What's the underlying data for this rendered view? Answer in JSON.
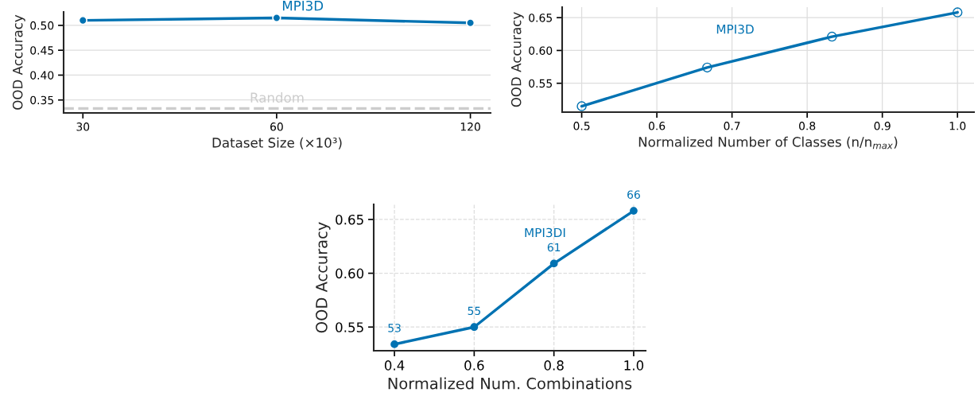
{
  "chart_data": [
    {
      "type": "line",
      "xlabel": "Dataset Size (×10³)",
      "ylabel": "OOD Accuracy",
      "x": [
        30,
        60,
        120
      ],
      "series": [
        {
          "color": "#0072b2",
          "values": [
            0.51,
            0.515,
            0.505
          ]
        }
      ],
      "log": "x",
      "xlim": [
        28,
        129
      ],
      "xticks": [
        30,
        60,
        120
      ],
      "ylim": [
        0.324,
        0.527
      ],
      "yticks": [
        0.35,
        {
          "value": 0.4,
          "label": "0.40"
        },
        0.45,
        {
          "value": 0.5,
          "label": "0.50"
        }
      ],
      "grid": "y",
      "marker": "circle",
      "line_style": "solid",
      "ref_lines": [
        {
          "axis": "y",
          "value": 0.333,
          "label": "Random",
          "color": "#cccccc",
          "line_style": "dashed"
        }
      ],
      "annotations": [
        "MPI3D"
      ]
    },
    {
      "type": "line",
      "xlabel": "Normalized Number of Classes (n/n$_{max}$)",
      "ylabel": "OOD Accuracy",
      "x": [
        0.5,
        0.667,
        0.833,
        1.0
      ],
      "series": [
        {
          "color": "#0072b2",
          "values": [
            0.515,
            0.574,
            0.621,
            0.658
          ]
        }
      ],
      "xlim": [
        0.474,
        1.022
      ],
      "xticks": [
        0.5,
        0.6,
        0.7,
        0.8,
        0.9,
        {
          "value": 1.0,
          "label": "1.0"
        }
      ],
      "ylim": [
        0.506,
        0.666
      ],
      "yticks": [
        0.55,
        {
          "value": 0.6,
          "label": "0.60"
        },
        0.65
      ],
      "grid": true,
      "marker": "circle",
      "line_style": "solid",
      "annotations": [
        "MPI3D"
      ]
    },
    {
      "type": "line",
      "xlabel": "Normalized Num. Combinations",
      "ylabel": "OOD Accuracy",
      "x": [
        0.4,
        0.6,
        0.8,
        1.0
      ],
      "series": [
        {
          "color": "#0072b2",
          "values": [
            0.534,
            0.55,
            0.609,
            0.658
          ]
        }
      ],
      "xlim": [
        0.348,
        1.03
      ],
      "xticks": [
        0.4,
        0.6,
        0.8,
        {
          "value": 1.0,
          "label": "1.0"
        }
      ],
      "ylim": [
        0.528,
        0.664
      ],
      "yticks": [
        0.55,
        {
          "value": 0.6,
          "label": "0.60"
        },
        0.65
      ],
      "grid": true,
      "marker": "circle",
      "line_style": "solid",
      "annotations": [
        "MPI3DI",
        {
          "text": "53",
          "x": 0.4,
          "y": 0.534
        },
        {
          "text": "55",
          "x": 0.6,
          "y": 0.55
        },
        {
          "text": "61",
          "x": 0.8,
          "y": 0.609
        },
        {
          "text": "66",
          "x": 1.0,
          "y": 0.658
        }
      ]
    }
  ]
}
